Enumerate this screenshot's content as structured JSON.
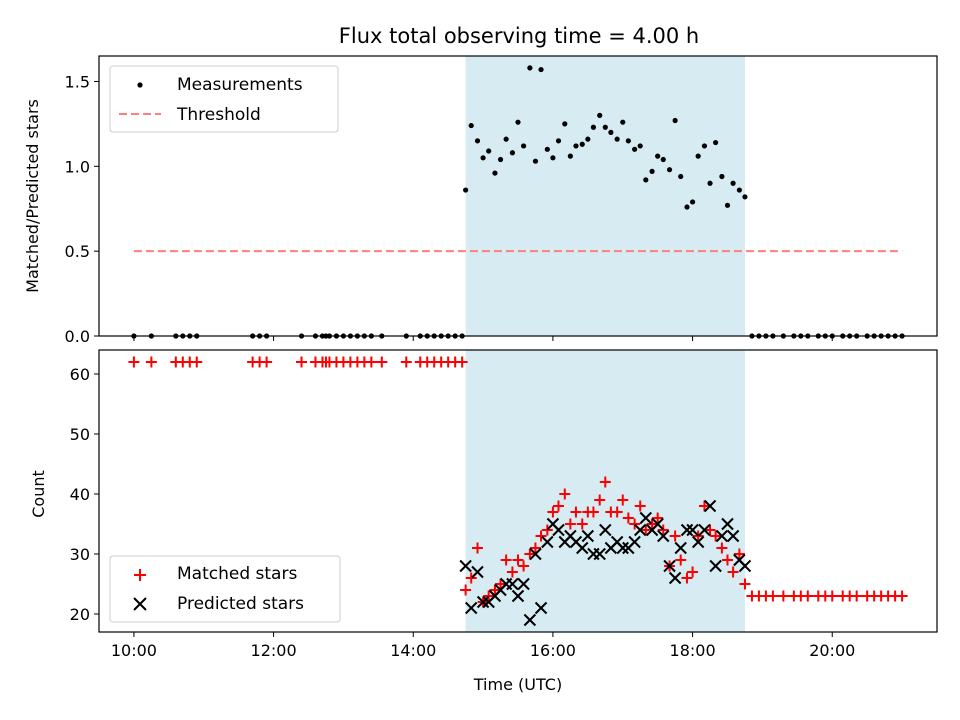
{
  "chart_data": {
    "title": "Flux total observing time = 4.00 h",
    "xlabel": "Time (UTC)",
    "x_ticks": [
      "10:00",
      "12:00",
      "14:00",
      "16:00",
      "18:00",
      "20:00"
    ],
    "x_units": "hours UTC",
    "xlim": [
      9.5,
      21.5
    ],
    "shaded_interval": {
      "start": 14.75,
      "end": 18.75,
      "color": "#add8e6"
    },
    "panels": [
      {
        "type": "scatter",
        "ylabel": "Matched/Predicted stars",
        "ylim": [
          0,
          1.65
        ],
        "y_ticks": [
          0.0,
          0.5,
          1.0,
          1.5
        ],
        "legend": {
          "placement": "upper-left",
          "entries": [
            "Measurements",
            "Threshold"
          ]
        },
        "series": [
          {
            "name": "Measurements",
            "color": "#000000",
            "marker": "dot",
            "x": [
              10.0,
              10.25,
              10.6,
              10.7,
              10.8,
              10.9,
              11.7,
              11.8,
              11.9,
              12.4,
              12.6,
              12.7,
              12.75,
              12.8,
              12.9,
              13.0,
              13.1,
              13.2,
              13.3,
              13.4,
              13.55,
              13.9,
              14.1,
              14.2,
              14.3,
              14.4,
              14.5,
              14.6,
              14.7,
              14.75,
              14.83,
              14.92,
              15.0,
              15.08,
              15.17,
              15.25,
              15.33,
              15.42,
              15.5,
              15.58,
              15.67,
              15.75,
              15.83,
              15.92,
              16.0,
              16.08,
              16.17,
              16.25,
              16.33,
              16.42,
              16.5,
              16.58,
              16.67,
              16.75,
              16.83,
              16.92,
              17.0,
              17.08,
              17.17,
              17.25,
              17.33,
              17.42,
              17.5,
              17.58,
              17.67,
              17.75,
              17.83,
              17.92,
              18.0,
              18.08,
              18.17,
              18.25,
              18.33,
              18.42,
              18.5,
              18.58,
              18.67,
              18.75,
              18.85,
              18.95,
              19.05,
              19.15,
              19.3,
              19.45,
              19.55,
              19.65,
              19.8,
              19.9,
              20.0,
              20.15,
              20.25,
              20.35,
              20.5,
              20.6,
              20.7,
              20.8,
              20.9,
              21.0
            ],
            "y": [
              0,
              0,
              0,
              0,
              0,
              0,
              0,
              0,
              0,
              0,
              0,
              0,
              0,
              0,
              0,
              0,
              0,
              0,
              0,
              0,
              0,
              0,
              0,
              0,
              0,
              0,
              0,
              0,
              0,
              0.86,
              1.24,
              1.15,
              1.05,
              1.09,
              0.96,
              1.04,
              1.16,
              1.08,
              1.26,
              1.12,
              1.58,
              1.03,
              1.57,
              1.1,
              1.05,
              1.15,
              1.25,
              1.06,
              1.12,
              1.13,
              1.16,
              1.23,
              1.3,
              1.23,
              1.2,
              1.16,
              1.26,
              1.15,
              1.1,
              1.12,
              0.92,
              0.97,
              1.06,
              1.04,
              0.98,
              1.27,
              0.94,
              0.76,
              0.79,
              1.06,
              1.12,
              0.9,
              1.14,
              0.94,
              0.77,
              0.9,
              0.86,
              0.82,
              0,
              0,
              0,
              0,
              0,
              0,
              0,
              0,
              0,
              0,
              0,
              0,
              0,
              0,
              0,
              0,
              0,
              0,
              0,
              0
            ]
          },
          {
            "name": "Threshold",
            "type": "line",
            "style": "dashed",
            "color": "#ff7f7f",
            "x": [
              10.0,
              21.0
            ],
            "y": [
              0.5,
              0.5
            ]
          }
        ]
      },
      {
        "type": "scatter",
        "ylabel": "Count",
        "ylim": [
          17,
          64
        ],
        "y_ticks": [
          20,
          30,
          40,
          50,
          60
        ],
        "legend": {
          "placement": "lower-left",
          "entries": [
            "Matched stars",
            "Predicted stars"
          ]
        },
        "series": [
          {
            "name": "Matched stars",
            "color": "#ff0000",
            "marker": "plus",
            "x": [
              10.0,
              10.25,
              10.6,
              10.7,
              10.8,
              10.9,
              11.7,
              11.8,
              11.9,
              12.4,
              12.6,
              12.7,
              12.75,
              12.8,
              12.9,
              13.0,
              13.1,
              13.2,
              13.3,
              13.4,
              13.55,
              13.9,
              14.1,
              14.2,
              14.3,
              14.4,
              14.5,
              14.6,
              14.7,
              14.75,
              14.83,
              14.92,
              15.0,
              15.08,
              15.17,
              15.25,
              15.33,
              15.42,
              15.5,
              15.58,
              15.67,
              15.75,
              15.83,
              15.92,
              16.0,
              16.08,
              16.17,
              16.25,
              16.33,
              16.42,
              16.5,
              16.58,
              16.67,
              16.75,
              16.83,
              16.92,
              17.0,
              17.08,
              17.17,
              17.25,
              17.33,
              17.42,
              17.5,
              17.58,
              17.67,
              17.75,
              17.83,
              17.92,
              18.0,
              18.08,
              18.17,
              18.25,
              18.33,
              18.42,
              18.5,
              18.58,
              18.67,
              18.75,
              18.85,
              18.95,
              19.05,
              19.15,
              19.3,
              19.45,
              19.55,
              19.65,
              19.8,
              19.9,
              20.0,
              20.15,
              20.25,
              20.35,
              20.5,
              20.6,
              20.7,
              20.8,
              20.9,
              21.0
            ],
            "y": [
              62,
              62,
              62,
              62,
              62,
              62,
              62,
              62,
              62,
              62,
              62,
              62,
              62,
              62,
              62,
              62,
              62,
              62,
              62,
              62,
              62,
              62,
              62,
              62,
              62,
              62,
              62,
              62,
              62,
              24,
              26,
              31,
              22,
              23,
              24,
              25,
              29,
              27,
              29,
              28,
              30,
              31,
              33,
              34,
              37,
              38,
              40,
              35,
              37,
              35,
              37,
              37,
              39,
              42,
              37,
              37,
              39,
              36,
              35,
              38,
              34,
              35,
              36,
              34,
              28,
              33,
              29,
              26,
              27,
              33,
              38,
              34,
              33,
              31,
              29,
              27,
              30,
              25,
              23,
              23,
              23,
              23,
              23,
              23,
              23,
              23,
              23,
              23,
              23,
              23,
              23,
              23,
              23,
              23,
              23,
              23,
              23,
              23
            ]
          },
          {
            "name": "Predicted stars",
            "color": "#000000",
            "marker": "x",
            "x": [
              14.75,
              14.83,
              14.92,
              15.0,
              15.08,
              15.17,
              15.25,
              15.33,
              15.42,
              15.5,
              15.58,
              15.67,
              15.75,
              15.83,
              15.92,
              16.0,
              16.08,
              16.17,
              16.25,
              16.33,
              16.42,
              16.5,
              16.58,
              16.67,
              16.75,
              16.83,
              16.92,
              17.0,
              17.08,
              17.17,
              17.25,
              17.33,
              17.42,
              17.5,
              17.58,
              17.67,
              17.75,
              17.83,
              17.92,
              18.0,
              18.08,
              18.17,
              18.25,
              18.33,
              18.42,
              18.5,
              18.58,
              18.67,
              18.75
            ],
            "y": [
              28,
              21,
              27,
              22,
              22,
              23,
              24,
              25,
              25,
              23,
              25,
              19,
              30,
              21,
              32,
              35,
              34,
              32,
              33,
              32,
              31,
              33,
              30,
              30,
              34,
              31,
              32,
              31,
              31,
              32,
              34,
              36,
              34,
              35,
              33,
              28,
              26,
              31,
              34,
              34,
              32,
              34,
              38,
              28,
              33,
              35,
              33,
              29,
              28
            ]
          }
        ]
      }
    ]
  }
}
